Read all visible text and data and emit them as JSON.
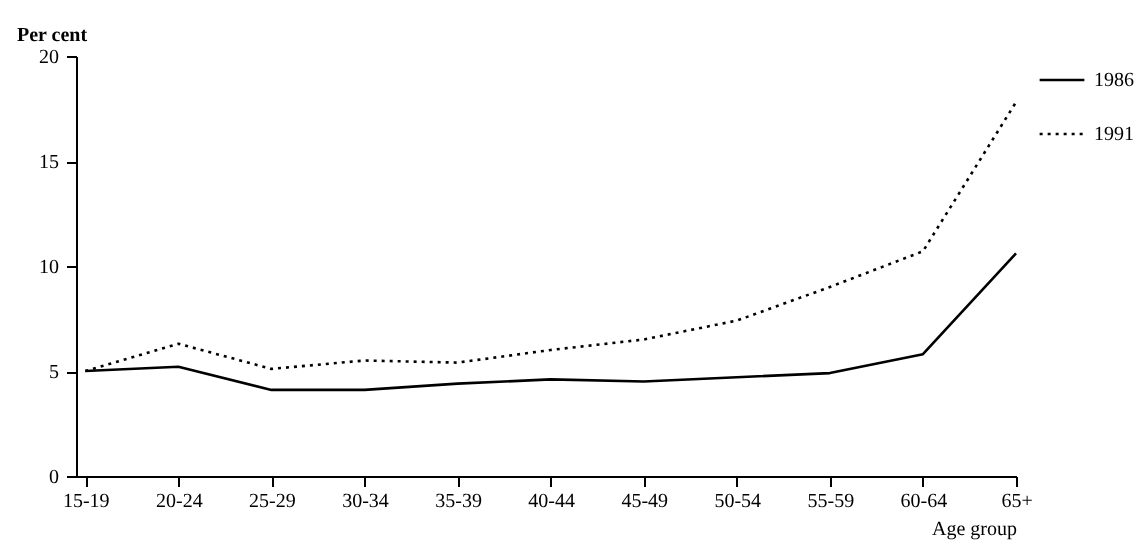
{
  "chart_data": {
    "type": "line",
    "ylabel": "Per cent",
    "xlabel": "Age group",
    "categories": [
      "15-19",
      "20-24",
      "25-29",
      "30-34",
      "35-39",
      "40-44",
      "45-49",
      "50-54",
      "55-59",
      "60-64",
      "65+"
    ],
    "series": [
      {
        "name": "1986",
        "color": "#000000",
        "line_style": "solid",
        "values": [
          5.0,
          5.2,
          4.1,
          4.1,
          4.4,
          4.6,
          4.5,
          4.7,
          4.9,
          5.8,
          10.6
        ]
      },
      {
        "name": "1991",
        "color": "#000000",
        "line_style": "dotted",
        "values": [
          5.0,
          6.3,
          5.1,
          5.5,
          5.4,
          6.0,
          6.5,
          7.4,
          9.0,
          10.7,
          17.8
        ]
      }
    ],
    "ylim": [
      0,
      20
    ],
    "yticks": [
      0,
      5,
      10,
      15,
      20
    ],
    "grid": false,
    "legend": "right",
    "marker": "none"
  }
}
